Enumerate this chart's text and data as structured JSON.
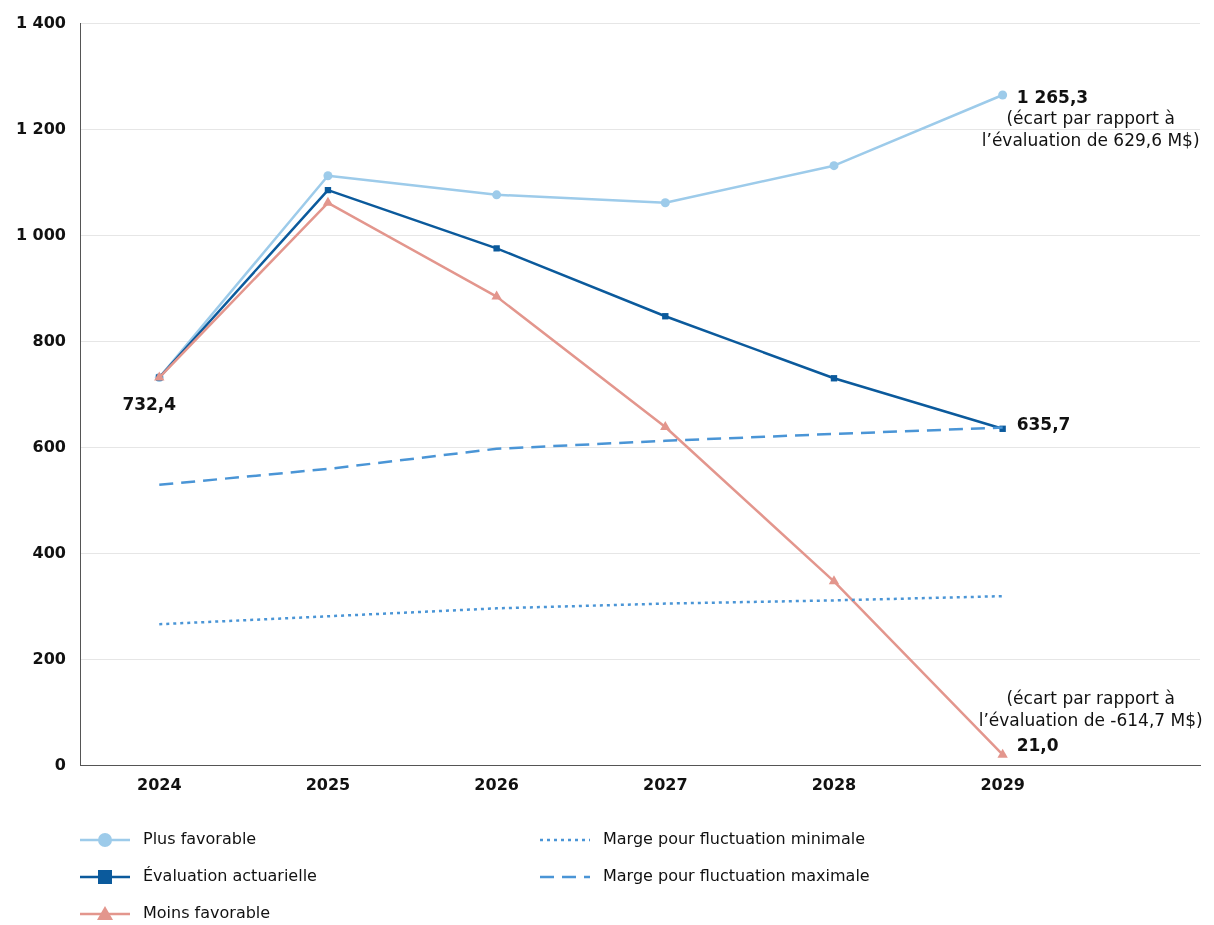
{
  "chart_data": {
    "type": "line",
    "x": [
      2024,
      2025,
      2026,
      2027,
      2028,
      2029
    ],
    "xlim": [
      2023.53,
      2030.17
    ],
    "xticks": [
      2024,
      2025,
      2026,
      2027,
      2028,
      2029
    ],
    "ylim": [
      0,
      1400
    ],
    "yticks": [
      0,
      200,
      400,
      600,
      800,
      {
        "value": 1000,
        "label": "1 000"
      },
      {
        "value": 1200,
        "label": "1 200"
      },
      {
        "value": 1400,
        "label": "1 400"
      }
    ],
    "grid": "y",
    "legend": "bottom",
    "series": [
      {
        "name": "Plus favorable",
        "color": "#9dcbea",
        "marker": "circle",
        "line_style": "solid",
        "values": [
          732.4,
          1113,
          1077,
          1062,
          1132,
          1265.3
        ],
        "value_labels": [
          null,
          null,
          null,
          null,
          null,
          "1 265,3"
        ]
      },
      {
        "name": "Évaluation actuarielle",
        "color": "#0b5a9c",
        "marker": "square",
        "line_style": "solid",
        "values": [
          732.4,
          1086,
          976,
          848,
          731,
          635.7
        ],
        "value_labels": [
          "732,4",
          null,
          null,
          null,
          null,
          "635,7"
        ]
      },
      {
        "name": "Moins favorable",
        "color": "#e3968d",
        "marker": "triangle",
        "line_style": "solid",
        "values": [
          732.4,
          1062,
          885,
          639,
          348,
          21.0
        ],
        "value_labels": [
          null,
          null,
          null,
          null,
          null,
          "21,0"
        ]
      },
      {
        "name": "Marge pour fluctuation minimale",
        "color": "#4a95d6",
        "marker": "none",
        "line_style": "dotted",
        "values": [
          267,
          282,
          297,
          306,
          312,
          320
        ]
      },
      {
        "name": "Marge pour fluctuation maximale",
        "color": "#4a95d6",
        "marker": "none",
        "line_style": "dashed",
        "values": [
          530,
          560,
          598,
          613,
          626,
          638
        ]
      }
    ],
    "annotations": [
      "(écart par rapport à\nl’évaluation de 629,6 M$)",
      "(écart par rapport à\nl’évaluation de -614,7 M$)"
    ]
  }
}
